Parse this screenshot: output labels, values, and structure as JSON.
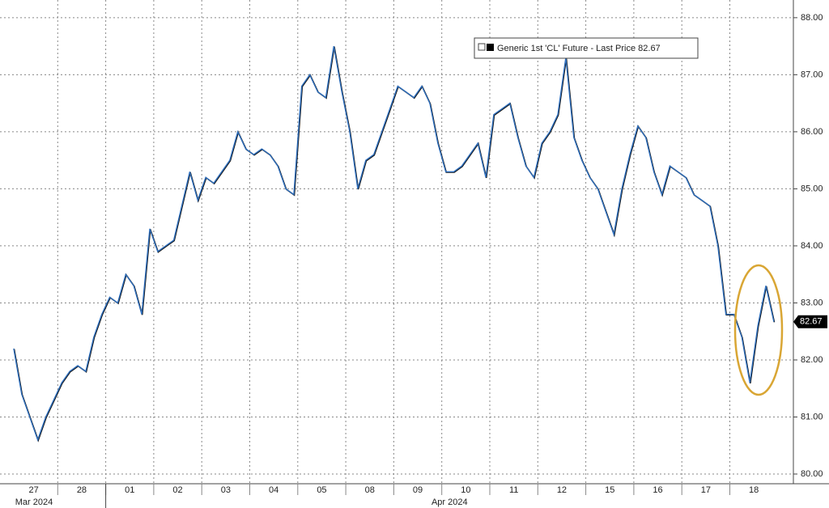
{
  "chart_data": {
    "type": "line",
    "categories": [
      null,
      null,
      null,
      "27",
      null,
      null,
      null,
      null,
      null,
      "28",
      null,
      null,
      null,
      null,
      null,
      "01",
      null,
      null,
      null,
      null,
      null,
      "02",
      null,
      null,
      null,
      null,
      null,
      "03",
      null,
      null,
      null,
      null,
      null,
      "04",
      null,
      null,
      null,
      null,
      null,
      "05",
      null,
      null,
      null,
      null,
      null,
      "08",
      null,
      null,
      null,
      null,
      null,
      "09",
      null,
      null,
      null,
      null,
      null,
      "10",
      null,
      null,
      null,
      null,
      null,
      "11",
      null,
      null,
      null,
      null,
      null,
      "12",
      null,
      null,
      null,
      null,
      null,
      "15",
      null,
      null,
      null,
      null,
      null,
      "16",
      null,
      null,
      null,
      null,
      null,
      "17",
      null,
      null,
      null,
      null,
      null,
      "18",
      null,
      null
    ],
    "months": [
      {
        "label": "Mar 2024",
        "start": "27"
      },
      {
        "label": "Apr 2024",
        "start": "01"
      }
    ],
    "series": [
      {
        "name": "Generic 1st 'CL' Future - Last Price 82.67",
        "color": "#2f6fbd",
        "values": [
          82.2,
          81.4,
          81.0,
          80.6,
          81.0,
          81.3,
          81.6,
          81.8,
          81.9,
          81.8,
          82.4,
          82.8,
          83.1,
          83.0,
          83.5,
          83.3,
          82.8,
          84.3,
          83.9,
          84.0,
          84.1,
          84.7,
          85.3,
          84.8,
          85.2,
          85.1,
          85.3,
          85.5,
          86.0,
          85.7,
          85.6,
          85.7,
          85.6,
          85.4,
          85.0,
          84.9,
          86.8,
          87.0,
          86.7,
          86.6,
          87.5,
          86.7,
          86.0,
          85.0,
          85.5,
          85.6,
          86.0,
          86.4,
          86.8,
          86.7,
          86.6,
          86.8,
          86.5,
          85.8,
          85.3,
          85.3,
          85.4,
          85.6,
          85.8,
          85.2,
          86.3,
          86.4,
          86.5,
          85.9,
          85.4,
          85.2,
          85.8,
          86.0,
          86.3,
          87.3,
          85.9,
          85.5,
          85.2,
          85.0,
          84.6,
          84.2,
          85.0,
          85.6,
          86.1,
          85.9,
          85.3,
          84.9,
          85.4,
          85.3,
          85.2,
          84.9,
          84.8,
          84.7,
          84.0,
          82.8,
          82.8,
          82.4,
          81.6,
          82.6,
          83.3,
          82.67
        ]
      }
    ],
    "last_value": 82.67,
    "ylim": [
      79.83,
      88.31
    ],
    "yticks": [
      {
        "value": 80,
        "label": "80.00"
      },
      {
        "value": 81,
        "label": "81.00"
      },
      {
        "value": 82,
        "label": "82.00"
      },
      {
        "value": 83,
        "label": "83.00"
      },
      {
        "value": 84,
        "label": "84.00"
      },
      {
        "value": 85,
        "label": "85.00"
      },
      {
        "value": 86,
        "label": "86.00"
      },
      {
        "value": 87,
        "label": "87.00"
      },
      {
        "value": 88,
        "label": "88.00"
      }
    ],
    "grid": true
  }
}
